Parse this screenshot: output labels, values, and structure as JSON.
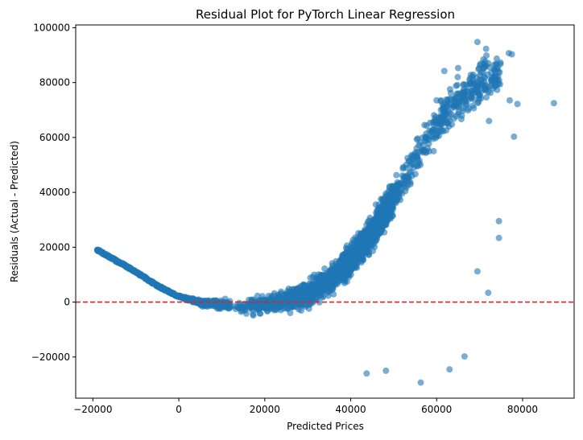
{
  "chart_data": {
    "type": "scatter",
    "title": "Residual Plot for PyTorch Linear Regression",
    "xlabel": "Predicted Prices",
    "ylabel": "Residuals (Actual - Predicted)",
    "xlim": [
      -24000,
      92000
    ],
    "ylim": [
      -35000,
      101000
    ],
    "xticks": [
      -20000,
      0,
      20000,
      40000,
      60000,
      80000
    ],
    "yticks": [
      -20000,
      0,
      20000,
      40000,
      60000,
      80000,
      100000
    ],
    "xtick_labels": [
      "−20000",
      "0",
      "20000",
      "40000",
      "60000",
      "80000"
    ],
    "ytick_labels": [
      "−20000",
      "0",
      "20000",
      "40000",
      "60000",
      "80000",
      "100000"
    ],
    "grid": false,
    "point_color": "#1f77b4",
    "point_alpha": 0.6,
    "reference_line": {
      "y": 0,
      "color": "#d62728",
      "style": "dashed"
    },
    "curve_points": [
      [
        -19000,
        19000
      ],
      [
        -15000,
        15500
      ],
      [
        -10000,
        11000
      ],
      [
        -5000,
        6000
      ],
      [
        0,
        2000
      ],
      [
        5000,
        0
      ],
      [
        10000,
        -1000
      ],
      [
        15000,
        -1500
      ],
      [
        20000,
        -1000
      ],
      [
        25000,
        500
      ],
      [
        30000,
        3000
      ],
      [
        35000,
        8000
      ],
      [
        40000,
        15000
      ],
      [
        45000,
        25000
      ],
      [
        50000,
        38000
      ],
      [
        55000,
        52000
      ],
      [
        60000,
        65000
      ],
      [
        65000,
        73000
      ],
      [
        70000,
        80000
      ],
      [
        75000,
        83000
      ]
    ],
    "outlier_points": [
      [
        69500,
        94800
      ],
      [
        71500,
        92300
      ],
      [
        76800,
        90700
      ],
      [
        77500,
        90300
      ],
      [
        87300,
        72500
      ],
      [
        78800,
        72200
      ],
      [
        77000,
        73500
      ],
      [
        78000,
        60300
      ],
      [
        74500,
        29500
      ],
      [
        74500,
        23400
      ],
      [
        72000,
        3400
      ],
      [
        69500,
        11200
      ],
      [
        66500,
        -19800
      ],
      [
        63000,
        -24500
      ],
      [
        56300,
        -29300
      ],
      [
        43700,
        -26000
      ],
      [
        48200,
        -25000
      ],
      [
        61800,
        84200
      ],
      [
        65000,
        85300
      ],
      [
        72200,
        66000
      ]
    ]
  }
}
